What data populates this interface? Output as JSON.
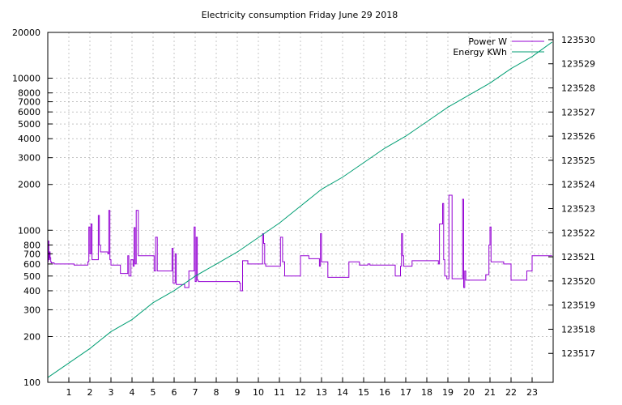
{
  "chart_data": {
    "type": "line",
    "title": "Electricity consumption Friday June 29 2018",
    "xlabel": "",
    "ylabel": "",
    "y2label": "",
    "xlim": [
      0,
      24
    ],
    "x_ticks": [
      1,
      2,
      3,
      4,
      5,
      6,
      7,
      8,
      9,
      10,
      11,
      12,
      13,
      14,
      15,
      16,
      17,
      18,
      19,
      20,
      21,
      22,
      23
    ],
    "ylim": [
      100,
      20000
    ],
    "y_scale": "log",
    "y_ticks": [
      100,
      200,
      300,
      400,
      500,
      600,
      700,
      800,
      1000,
      2000,
      3000,
      4000,
      5000,
      6000,
      7000,
      8000,
      10000,
      20000
    ],
    "y2lim": [
      123515.8,
      123530.3
    ],
    "y2_ticks": [
      123517,
      123518,
      123519,
      123520,
      123521,
      123522,
      123523,
      123524,
      123525,
      123526,
      123527,
      123528,
      123529,
      123530
    ],
    "grid": true,
    "legend_position": "top-right",
    "series": [
      {
        "name": "Power W",
        "axis": "left",
        "color": "#9400d3",
        "x": [
          0,
          0.02,
          0.05,
          0.08,
          0.11,
          0.14,
          0.17,
          0.3,
          1.25,
          1.9,
          1.95,
          2.0,
          2.05,
          2.1,
          2.4,
          2.45,
          2.5,
          2.55,
          2.6,
          2.8,
          2.85,
          2.9,
          2.95,
          3.0,
          3.45,
          3.8,
          3.85,
          3.95,
          4.05,
          4.1,
          4.15,
          4.2,
          4.3,
          4.4,
          4.45,
          5.05,
          5.12,
          5.2,
          5.25,
          5.3,
          5.9,
          5.95,
          6.0,
          6.05,
          6.1,
          6.5,
          6.7,
          6.95,
          7.0,
          7.05,
          7.1,
          7.15,
          8.0,
          9.1,
          9.15,
          9.25,
          9.5,
          10.15,
          10.2,
          10.25,
          10.3,
          10.35,
          11.0,
          11.05,
          11.15,
          11.25,
          11.75,
          12.0,
          12.4,
          12.9,
          12.95,
          13.0,
          13.3,
          14.0,
          14.3,
          14.8,
          15.2,
          15.3,
          16.2,
          16.5,
          16.75,
          16.8,
          16.85,
          16.9,
          17.3,
          17.9,
          18.55,
          18.6,
          18.75,
          18.8,
          18.85,
          18.95,
          19.05,
          19.2,
          19.25,
          19.3,
          19.5,
          19.7,
          19.75,
          19.8,
          19.85,
          20.0,
          20.7,
          20.8,
          20.95,
          21.0,
          21.05,
          21.1,
          21.5,
          21.65,
          22.0,
          22.6,
          22.75,
          23.0,
          23.5,
          23.95
        ],
        "y": [
          620,
          850,
          640,
          720,
          660,
          620,
          610,
          600,
          590,
          620,
          1050,
          700,
          1100,
          640,
          1250,
          800,
          720,
          720,
          720,
          720,
          700,
          1350,
          640,
          590,
          520,
          680,
          500,
          640,
          580,
          1040,
          600,
          1350,
          680,
          680,
          680,
          540,
          900,
          540,
          540,
          540,
          760,
          450,
          450,
          700,
          440,
          420,
          540,
          1050,
          460,
          900,
          470,
          460,
          460,
          450,
          400,
          630,
          600,
          600,
          950,
          820,
          600,
          580,
          580,
          900,
          620,
          500,
          500,
          680,
          650,
          580,
          950,
          620,
          490,
          490,
          620,
          590,
          600,
          590,
          590,
          500,
          580,
          950,
          680,
          580,
          630,
          630,
          600,
          1100,
          1500,
          640,
          500,
          480,
          1700,
          480,
          480,
          480,
          480,
          1600,
          420,
          540,
          470,
          470,
          470,
          510,
          800,
          1050,
          620,
          620,
          620,
          600,
          470,
          470,
          540,
          680,
          680,
          680
        ]
      },
      {
        "name": "Energy KWh",
        "axis": "right",
        "color": "#009e73",
        "x": [
          0,
          1,
          2,
          3,
          4,
          5,
          6,
          7,
          8,
          9,
          10,
          11,
          12,
          13,
          14,
          15,
          16,
          17,
          18,
          19,
          20,
          21,
          22,
          23,
          23.95
        ],
        "y": [
          123516.0,
          123516.6,
          123517.2,
          123517.9,
          123518.4,
          123519.1,
          123519.6,
          123520.2,
          123520.7,
          123521.2,
          123521.8,
          123522.4,
          123523.1,
          123523.8,
          123524.3,
          123524.9,
          123525.5,
          123526.0,
          123526.6,
          123527.2,
          123527.7,
          123528.2,
          123528.8,
          123529.3,
          123529.9
        ]
      }
    ]
  }
}
